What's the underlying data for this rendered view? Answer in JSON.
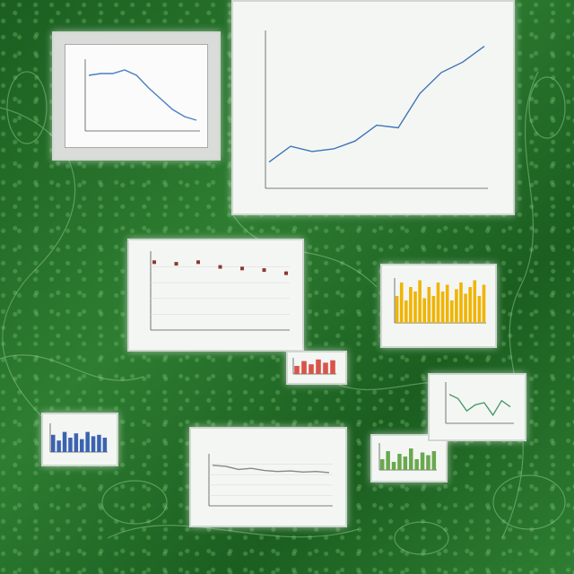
{
  "chart_data": [
    {
      "type": "line",
      "title": "",
      "x": [
        1,
        2,
        3,
        4,
        5,
        6,
        7,
        8,
        9,
        10
      ],
      "y": [
        62,
        64,
        64,
        68,
        62,
        48,
        36,
        24,
        16,
        12
      ],
      "ylim": [
        0,
        80
      ],
      "grid": false,
      "color": "#4a7fc0"
    },
    {
      "type": "line",
      "title": "",
      "x": [
        1,
        2,
        3,
        4,
        5,
        6,
        7,
        8,
        9,
        10,
        11
      ],
      "y": [
        5,
        8,
        7,
        7.5,
        9,
        12,
        11.5,
        18,
        22,
        24,
        27
      ],
      "ylim": [
        0,
        30
      ],
      "grid": false,
      "color": "#3f73b8"
    },
    {
      "type": "scatter",
      "title": "",
      "x": [
        1,
        2,
        3,
        4,
        5,
        6,
        7
      ],
      "y": [
        8.6,
        8.4,
        8.6,
        8.0,
        7.8,
        7.6,
        7.2
      ],
      "ylim": [
        0,
        10
      ],
      "grid": true,
      "color": "#8b3a2e"
    },
    {
      "type": "bar",
      "title": "",
      "values": [
        0.6,
        0.9,
        0.5,
        0.8,
        0.7,
        0.95,
        0.55,
        0.8,
        0.6,
        0.9,
        0.7,
        0.85,
        0.5,
        0.75,
        0.9,
        0.65,
        0.8,
        0.95,
        0.6,
        0.85
      ],
      "ylim": [
        0,
        1
      ],
      "color": "#f0b400"
    },
    {
      "type": "bar",
      "title": "",
      "values": [
        0.5,
        0.8,
        0.6,
        0.9,
        0.7,
        0.85
      ],
      "ylim": [
        0,
        1
      ],
      "color": "#d8544a"
    },
    {
      "type": "bar",
      "title": "",
      "values": [
        0.6,
        0.4,
        0.7,
        0.5,
        0.65,
        0.45,
        0.7,
        0.55,
        0.6,
        0.5
      ],
      "ylim": [
        0,
        1
      ],
      "color": "#3b63b0"
    },
    {
      "type": "line",
      "title": "",
      "x": [
        1,
        2,
        3,
        4,
        5,
        6,
        7,
        8,
        9,
        10
      ],
      "y": [
        0.78,
        0.76,
        0.7,
        0.72,
        0.68,
        0.66,
        0.67,
        0.65,
        0.66,
        0.64
      ],
      "ylim": [
        0,
        1
      ],
      "grid": true,
      "color": "#888888"
    },
    {
      "type": "bar",
      "title": "",
      "values": [
        0.4,
        0.7,
        0.3,
        0.6,
        0.5,
        0.8,
        0.4,
        0.65,
        0.55,
        0.7
      ],
      "ylim": [
        0,
        1
      ],
      "color": "#6aa84f"
    },
    {
      "type": "line",
      "title": "",
      "x": [
        1,
        2,
        3,
        4,
        5,
        6,
        7,
        8
      ],
      "y": [
        0.7,
        0.6,
        0.3,
        0.45,
        0.5,
        0.2,
        0.55,
        0.4
      ],
      "ylim": [
        0,
        1
      ],
      "grid": false,
      "color": "#4a9a6a"
    }
  ]
}
